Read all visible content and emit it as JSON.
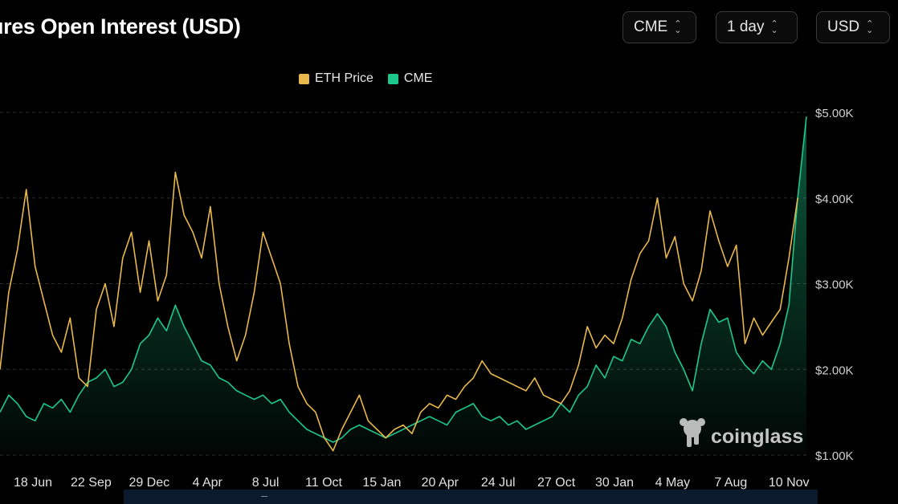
{
  "header": {
    "title": "ures Open Interest (USD)",
    "selectors": [
      {
        "value": "CME"
      },
      {
        "value": "1 day"
      },
      {
        "value": "USD"
      }
    ]
  },
  "legend": [
    {
      "label": "ETH Price",
      "color": "#e8b84a"
    },
    {
      "label": "CME",
      "color": "#1cc98a"
    }
  ],
  "watermark": {
    "text": "coinglass",
    "icon": "coinglass-logo-icon"
  },
  "chart_data": {
    "type": "line",
    "x_tick_labels": [
      "18 Jun",
      "22 Sep",
      "29 Dec",
      "4 Apr",
      "8 Jul",
      "11 Oct",
      "15 Jan",
      "20 Apr",
      "24 Jul",
      "27 Oct",
      "30 Jan",
      "4 May",
      "7 Aug",
      "10 Nov"
    ],
    "y_tick_labels": [
      "$1.00K",
      "$2.00K",
      "$3.00K",
      "$4.00K",
      "$5.00K"
    ],
    "ylim": [
      1000,
      5000
    ],
    "grid": "horizontal-dashed",
    "legend_position": "top-center",
    "series": [
      {
        "name": "ETH Price",
        "color": "#e8b84a",
        "values": [
          2000,
          2900,
          3400,
          4100,
          3200,
          2800,
          2400,
          2200,
          2600,
          1900,
          1800,
          2700,
          3000,
          2500,
          3300,
          3600,
          2900,
          3500,
          2800,
          3100,
          4300,
          3800,
          3600,
          3300,
          3900,
          3000,
          2500,
          2100,
          2400,
          2900,
          3600,
          3300,
          3000,
          2300,
          1800,
          1600,
          1500,
          1200,
          1050,
          1300,
          1500,
          1700,
          1400,
          1300,
          1200,
          1300,
          1350,
          1250,
          1500,
          1600,
          1550,
          1700,
          1650,
          1800,
          1900,
          2100,
          1950,
          1900,
          1850,
          1800,
          1750,
          1900,
          1700,
          1650,
          1600,
          1750,
          2050,
          2500,
          2250,
          2400,
          2300,
          2600,
          3050,
          3350,
          3500,
          4000,
          3300,
          3550,
          3000,
          2800,
          3150,
          3850,
          3500,
          3200,
          3450,
          2300,
          2600,
          2400,
          2550,
          2700,
          3300,
          4000
        ],
        "x_index_range": [
          0,
          91
        ]
      },
      {
        "name": "CME",
        "color": "#1cc98a",
        "values": [
          1500,
          1700,
          1600,
          1450,
          1400,
          1600,
          1550,
          1650,
          1500,
          1700,
          1850,
          1900,
          2000,
          1800,
          1850,
          2000,
          2300,
          2400,
          2600,
          2450,
          2750,
          2500,
          2300,
          2100,
          2050,
          1900,
          1850,
          1750,
          1700,
          1650,
          1700,
          1600,
          1650,
          1500,
          1400,
          1300,
          1250,
          1200,
          1150,
          1200,
          1300,
          1350,
          1300,
          1250,
          1200,
          1250,
          1300,
          1350,
          1400,
          1450,
          1400,
          1350,
          1500,
          1550,
          1600,
          1450,
          1400,
          1450,
          1350,
          1400,
          1300,
          1350,
          1400,
          1450,
          1600,
          1500,
          1700,
          1800,
          2050,
          1900,
          2150,
          2100,
          2350,
          2300,
          2500,
          2650,
          2500,
          2200,
          2000,
          1750,
          2300,
          2700,
          2550,
          2600,
          2200,
          2050,
          1950,
          2100,
          2000,
          2300,
          2750,
          4000,
          4950
        ],
        "x_index_range": [
          0,
          92
        ]
      }
    ]
  }
}
